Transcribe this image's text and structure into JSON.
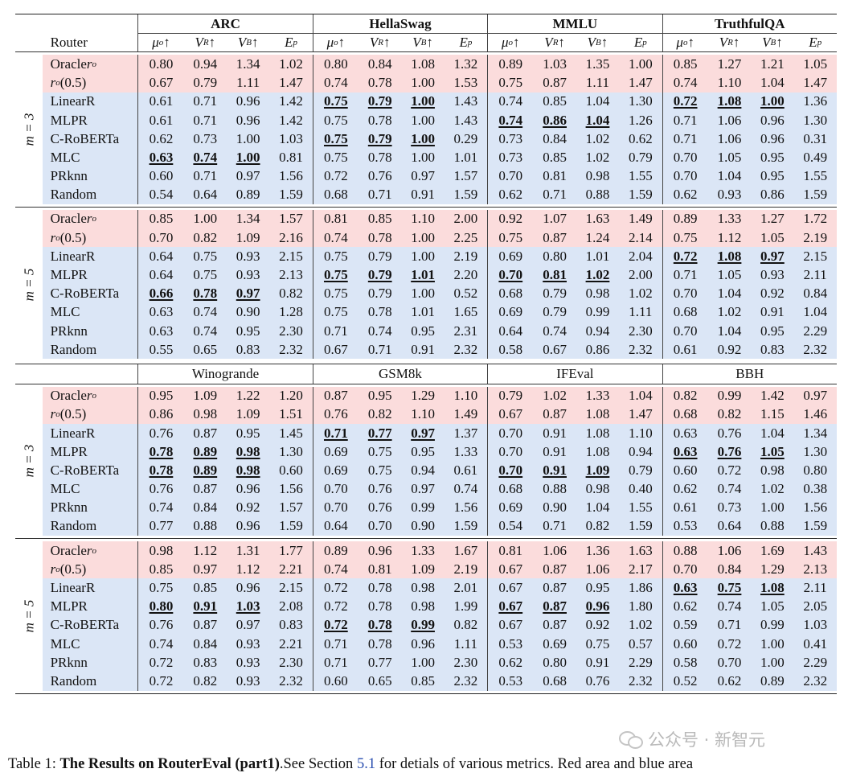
{
  "router_header": "Router",
  "metric_headers": [
    {
      "sym": "μ",
      "sub": "o",
      "suffix": "↑"
    },
    {
      "sym": "V",
      "sub": "R",
      "suffix": "↑"
    },
    {
      "sym": "V",
      "sub": "B",
      "suffix": "↑"
    },
    {
      "sym": "E",
      "sub": "p",
      "suffix": ""
    }
  ],
  "sections": [
    {
      "benchmarks": [
        "ARC",
        "HellaSwag",
        "MMLU",
        "TruthfulQA"
      ],
      "blocks": [
        {
          "m_label": "m = 3",
          "rows": [
            {
              "router": "Oracle r_o",
              "tone": "red",
              "values": [
                "0.80",
                "0.94",
                "1.34",
                "1.02",
                "0.80",
                "0.84",
                "1.08",
                "1.32",
                "0.89",
                "1.03",
                "1.35",
                "1.00",
                "0.85",
                "1.27",
                "1.21",
                "1.05"
              ],
              "bold": []
            },
            {
              "router": "r_o(0.5)",
              "tone": "red",
              "values": [
                "0.67",
                "0.79",
                "1.11",
                "1.47",
                "0.74",
                "0.78",
                "1.00",
                "1.53",
                "0.75",
                "0.87",
                "1.11",
                "1.47",
                "0.74",
                "1.10",
                "1.04",
                "1.47"
              ],
              "bold": []
            },
            {
              "router": "LinearR",
              "tone": "blue",
              "values": [
                "0.61",
                "0.71",
                "0.96",
                "1.42",
                "0.75",
                "0.79",
                "1.00",
                "1.43",
                "0.74",
                "0.85",
                "1.04",
                "1.30",
                "0.72",
                "1.08",
                "1.00",
                "1.36"
              ],
              "bold": [
                4,
                5,
                6,
                12,
                13,
                14
              ]
            },
            {
              "router": "MLPR",
              "tone": "blue",
              "values": [
                "0.61",
                "0.71",
                "0.96",
                "1.42",
                "0.75",
                "0.78",
                "1.00",
                "1.43",
                "0.74",
                "0.86",
                "1.04",
                "1.26",
                "0.71",
                "1.06",
                "0.96",
                "1.30"
              ],
              "bold": [
                8,
                9,
                10
              ]
            },
            {
              "router": "C-RoBERTa",
              "tone": "blue",
              "values": [
                "0.62",
                "0.73",
                "1.00",
                "1.03",
                "0.75",
                "0.79",
                "1.00",
                "0.29",
                "0.73",
                "0.84",
                "1.02",
                "0.62",
                "0.71",
                "1.06",
                "0.96",
                "0.31"
              ],
              "bold": [
                4,
                5,
                6
              ]
            },
            {
              "router": "MLC",
              "tone": "blue",
              "values": [
                "0.63",
                "0.74",
                "1.00",
                "0.81",
                "0.75",
                "0.78",
                "1.00",
                "1.01",
                "0.73",
                "0.85",
                "1.02",
                "0.79",
                "0.70",
                "1.05",
                "0.95",
                "0.49"
              ],
              "bold": [
                0,
                1,
                2
              ]
            },
            {
              "router": "PRknn",
              "tone": "blue",
              "values": [
                "0.60",
                "0.71",
                "0.97",
                "1.56",
                "0.72",
                "0.76",
                "0.97",
                "1.57",
                "0.70",
                "0.81",
                "0.98",
                "1.55",
                "0.70",
                "1.04",
                "0.95",
                "1.55"
              ],
              "bold": []
            },
            {
              "router": "Random",
              "tone": "blue",
              "values": [
                "0.54",
                "0.64",
                "0.89",
                "1.59",
                "0.68",
                "0.71",
                "0.91",
                "1.59",
                "0.62",
                "0.71",
                "0.88",
                "1.59",
                "0.62",
                "0.93",
                "0.86",
                "1.59"
              ],
              "bold": []
            }
          ]
        },
        {
          "m_label": "m = 5",
          "rows": [
            {
              "router": "Oracle r_o",
              "tone": "red",
              "values": [
                "0.85",
                "1.00",
                "1.34",
                "1.57",
                "0.81",
                "0.85",
                "1.10",
                "2.00",
                "0.92",
                "1.07",
                "1.63",
                "1.49",
                "0.89",
                "1.33",
                "1.27",
                "1.72"
              ],
              "bold": []
            },
            {
              "router": "r_o(0.5)",
              "tone": "red",
              "values": [
                "0.70",
                "0.82",
                "1.09",
                "2.16",
                "0.74",
                "0.78",
                "1.00",
                "2.25",
                "0.75",
                "0.87",
                "1.24",
                "2.14",
                "0.75",
                "1.12",
                "1.05",
                "2.19"
              ],
              "bold": []
            },
            {
              "router": "LinearR",
              "tone": "blue",
              "values": [
                "0.64",
                "0.75",
                "0.93",
                "2.15",
                "0.75",
                "0.79",
                "1.00",
                "2.19",
                "0.69",
                "0.80",
                "1.01",
                "2.04",
                "0.72",
                "1.08",
                "0.97",
                "2.15"
              ],
              "bold": [
                12,
                13,
                14
              ]
            },
            {
              "router": "MLPR",
              "tone": "blue",
              "values": [
                "0.64",
                "0.75",
                "0.93",
                "2.13",
                "0.75",
                "0.79",
                "1.01",
                "2.20",
                "0.70",
                "0.81",
                "1.02",
                "2.00",
                "0.71",
                "1.05",
                "0.93",
                "2.11"
              ],
              "bold": [
                4,
                5,
                6,
                8,
                9,
                10
              ]
            },
            {
              "router": "C-RoBERTa",
              "tone": "blue",
              "values": [
                "0.66",
                "0.78",
                "0.97",
                "0.82",
                "0.75",
                "0.79",
                "1.00",
                "0.52",
                "0.68",
                "0.79",
                "0.98",
                "1.02",
                "0.70",
                "1.04",
                "0.92",
                "0.84"
              ],
              "bold": [
                0,
                1,
                2
              ]
            },
            {
              "router": "MLC",
              "tone": "blue",
              "values": [
                "0.63",
                "0.74",
                "0.90",
                "1.28",
                "0.75",
                "0.78",
                "1.01",
                "1.65",
                "0.69",
                "0.79",
                "0.99",
                "1.11",
                "0.68",
                "1.02",
                "0.91",
                "1.04"
              ],
              "bold": []
            },
            {
              "router": "PRknn",
              "tone": "blue",
              "values": [
                "0.63",
                "0.74",
                "0.95",
                "2.30",
                "0.71",
                "0.74",
                "0.95",
                "2.31",
                "0.64",
                "0.74",
                "0.94",
                "2.30",
                "0.70",
                "1.04",
                "0.95",
                "2.29"
              ],
              "bold": []
            },
            {
              "router": "Random",
              "tone": "blue",
              "values": [
                "0.55",
                "0.65",
                "0.83",
                "2.32",
                "0.67",
                "0.71",
                "0.91",
                "2.32",
                "0.58",
                "0.67",
                "0.86",
                "2.32",
                "0.61",
                "0.92",
                "0.83",
                "2.32"
              ],
              "bold": []
            }
          ]
        }
      ]
    },
    {
      "benchmarks": [
        "Winogrande",
        "GSM8k",
        "IFEval",
        "BBH"
      ],
      "blocks": [
        {
          "m_label": "m = 3",
          "rows": [
            {
              "router": "Oracle r_o",
              "tone": "red",
              "values": [
                "0.95",
                "1.09",
                "1.22",
                "1.20",
                "0.87",
                "0.95",
                "1.29",
                "1.10",
                "0.79",
                "1.02",
                "1.33",
                "1.04",
                "0.82",
                "0.99",
                "1.42",
                "0.97"
              ],
              "bold": []
            },
            {
              "router": "r_o(0.5)",
              "tone": "red",
              "values": [
                "0.86",
                "0.98",
                "1.09",
                "1.51",
                "0.76",
                "0.82",
                "1.10",
                "1.49",
                "0.67",
                "0.87",
                "1.08",
                "1.47",
                "0.68",
                "0.82",
                "1.15",
                "1.46"
              ],
              "bold": []
            },
            {
              "router": "LinearR",
              "tone": "blue",
              "values": [
                "0.76",
                "0.87",
                "0.95",
                "1.45",
                "0.71",
                "0.77",
                "0.97",
                "1.37",
                "0.70",
                "0.91",
                "1.08",
                "1.10",
                "0.63",
                "0.76",
                "1.04",
                "1.34"
              ],
              "bold": [
                4,
                5,
                6
              ]
            },
            {
              "router": "MLPR",
              "tone": "blue",
              "values": [
                "0.78",
                "0.89",
                "0.98",
                "1.30",
                "0.69",
                "0.75",
                "0.95",
                "1.33",
                "0.70",
                "0.91",
                "1.08",
                "0.94",
                "0.63",
                "0.76",
                "1.05",
                "1.30"
              ],
              "bold": [
                0,
                1,
                2,
                12,
                13,
                14
              ]
            },
            {
              "router": "C-RoBERTa",
              "tone": "blue",
              "values": [
                "0.78",
                "0.89",
                "0.98",
                "0.60",
                "0.69",
                "0.75",
                "0.94",
                "0.61",
                "0.70",
                "0.91",
                "1.09",
                "0.79",
                "0.60",
                "0.72",
                "0.98",
                "0.80"
              ],
              "bold": [
                0,
                1,
                2,
                8,
                9,
                10
              ]
            },
            {
              "router": "MLC",
              "tone": "blue",
              "values": [
                "0.76",
                "0.87",
                "0.96",
                "1.56",
                "0.70",
                "0.76",
                "0.97",
                "0.74",
                "0.68",
                "0.88",
                "0.98",
                "0.40",
                "0.62",
                "0.74",
                "1.02",
                "0.38"
              ],
              "bold": []
            },
            {
              "router": "PRknn",
              "tone": "blue",
              "values": [
                "0.74",
                "0.84",
                "0.92",
                "1.57",
                "0.70",
                "0.76",
                "0.99",
                "1.56",
                "0.69",
                "0.90",
                "1.04",
                "1.55",
                "0.61",
                "0.73",
                "1.00",
                "1.56"
              ],
              "bold": []
            },
            {
              "router": "Random",
              "tone": "blue",
              "values": [
                "0.77",
                "0.88",
                "0.96",
                "1.59",
                "0.64",
                "0.70",
                "0.90",
                "1.59",
                "0.54",
                "0.71",
                "0.82",
                "1.59",
                "0.53",
                "0.64",
                "0.88",
                "1.59"
              ],
              "bold": []
            }
          ]
        },
        {
          "m_label": "m = 5",
          "rows": [
            {
              "router": "Oracle r_o",
              "tone": "red",
              "values": [
                "0.98",
                "1.12",
                "1.31",
                "1.77",
                "0.89",
                "0.96",
                "1.33",
                "1.67",
                "0.81",
                "1.06",
                "1.36",
                "1.63",
                "0.88",
                "1.06",
                "1.69",
                "1.43"
              ],
              "bold": []
            },
            {
              "router": "r_o(0.5)",
              "tone": "red",
              "values": [
                "0.85",
                "0.97",
                "1.12",
                "2.21",
                "0.74",
                "0.81",
                "1.09",
                "2.19",
                "0.67",
                "0.87",
                "1.06",
                "2.17",
                "0.70",
                "0.84",
                "1.29",
                "2.13"
              ],
              "bold": []
            },
            {
              "router": "LinearR",
              "tone": "blue",
              "values": [
                "0.75",
                "0.85",
                "0.96",
                "2.15",
                "0.72",
                "0.78",
                "0.98",
                "2.01",
                "0.67",
                "0.87",
                "0.95",
                "1.86",
                "0.63",
                "0.75",
                "1.08",
                "2.11"
              ],
              "bold": [
                12,
                13,
                14
              ]
            },
            {
              "router": "MLPR",
              "tone": "blue",
              "values": [
                "0.80",
                "0.91",
                "1.03",
                "2.08",
                "0.72",
                "0.78",
                "0.98",
                "1.99",
                "0.67",
                "0.87",
                "0.96",
                "1.80",
                "0.62",
                "0.74",
                "1.05",
                "2.05"
              ],
              "bold": [
                0,
                1,
                2,
                8,
                9,
                10
              ]
            },
            {
              "router": "C-RoBERTa",
              "tone": "blue",
              "values": [
                "0.76",
                "0.87",
                "0.97",
                "0.83",
                "0.72",
                "0.78",
                "0.99",
                "0.82",
                "0.67",
                "0.87",
                "0.92",
                "1.02",
                "0.59",
                "0.71",
                "0.99",
                "1.03"
              ],
              "bold": [
                4,
                5,
                6
              ]
            },
            {
              "router": "MLC",
              "tone": "blue",
              "values": [
                "0.74",
                "0.84",
                "0.93",
                "2.21",
                "0.71",
                "0.78",
                "0.96",
                "1.11",
                "0.53",
                "0.69",
                "0.75",
                "0.57",
                "0.60",
                "0.72",
                "1.00",
                "0.41"
              ],
              "bold": []
            },
            {
              "router": "PRknn",
              "tone": "blue",
              "values": [
                "0.72",
                "0.83",
                "0.93",
                "2.30",
                "0.71",
                "0.77",
                "1.00",
                "2.30",
                "0.62",
                "0.80",
                "0.91",
                "2.29",
                "0.58",
                "0.70",
                "1.00",
                "2.29"
              ],
              "bold": []
            },
            {
              "router": "Random",
              "tone": "blue",
              "values": [
                "0.72",
                "0.82",
                "0.93",
                "2.32",
                "0.60",
                "0.65",
                "0.85",
                "2.32",
                "0.53",
                "0.68",
                "0.76",
                "2.32",
                "0.52",
                "0.62",
                "0.89",
                "2.32"
              ],
              "bold": []
            }
          ]
        }
      ]
    }
  ],
  "caption": {
    "prefix": "Table 1: ",
    "bold": "The Results on RouterEval (part1)",
    "middle": ".See Section ",
    "ref": "5.1",
    "suffix": " for detials of various metrics. Red area and blue area"
  },
  "watermark": "公众号 · 新智元",
  "colors": {
    "red_area": "#fbdcdc",
    "blue_area": "#dbe6f6",
    "ref_link": "#2a4fb0"
  }
}
